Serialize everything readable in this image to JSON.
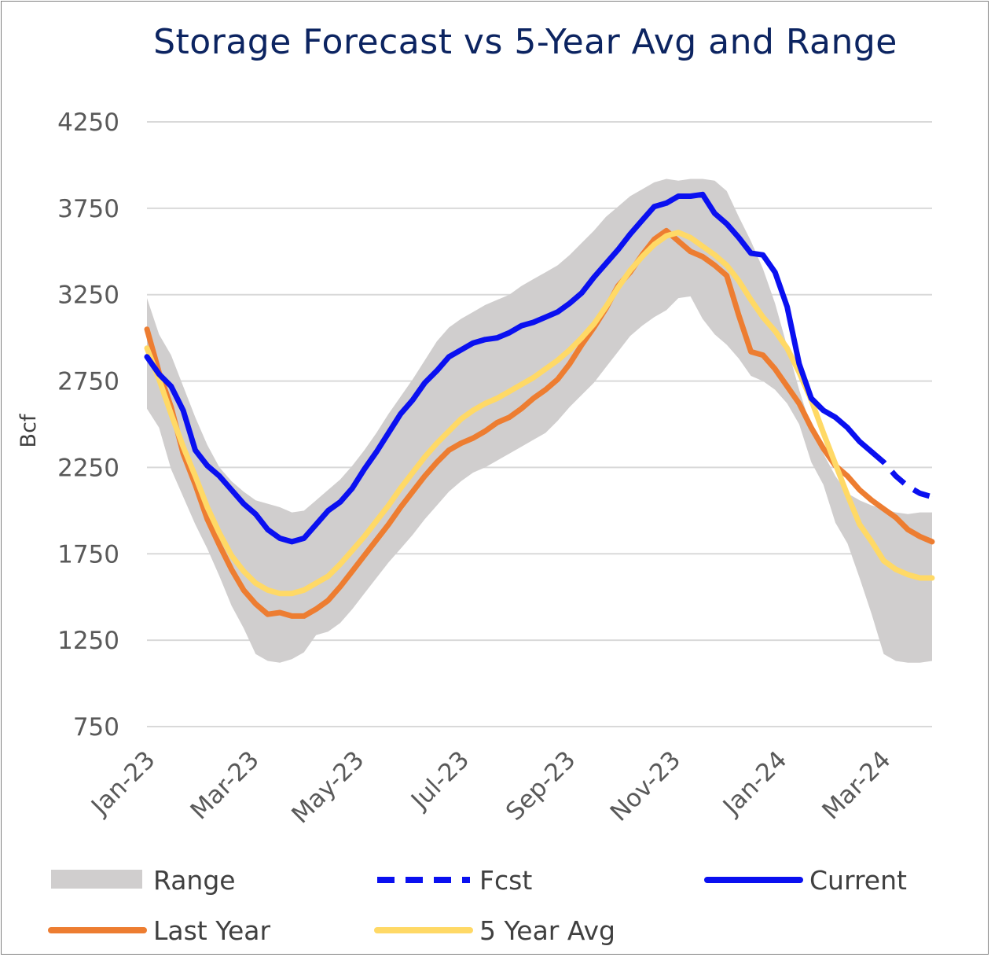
{
  "chart_data": {
    "type": "line",
    "title": "Storage Forecast vs 5-Year Avg and Range",
    "xlabel": "",
    "ylabel": "Bcf",
    "ylim": [
      750,
      4250
    ],
    "yticks": [
      750,
      1250,
      1750,
      2250,
      2750,
      3250,
      3750,
      4250
    ],
    "xlim_weeks": [
      0,
      65
    ],
    "xticks": [
      {
        "label": "Jan-23",
        "week": 0
      },
      {
        "label": "Mar-23",
        "week": 8.6
      },
      {
        "label": "May-23",
        "week": 17.3
      },
      {
        "label": "Jul-23",
        "week": 26
      },
      {
        "label": "Sep-23",
        "week": 34.8
      },
      {
        "label": "Nov-23",
        "week": 43.5
      },
      {
        "label": "Jan-24",
        "week": 52.3
      },
      {
        "label": "Mar-24",
        "week": 60.9
      }
    ],
    "grid": true,
    "legend_position": "bottom",
    "series": [
      {
        "name": "Range",
        "kind": "band",
        "color": "#d0cece",
        "weeks": [
          0,
          1,
          2,
          3,
          4,
          5,
          6,
          7,
          8,
          9,
          10,
          11,
          12,
          13,
          14,
          15,
          16,
          17,
          18,
          19,
          20,
          21,
          22,
          23,
          24,
          25,
          26,
          27,
          28,
          29,
          30,
          31,
          32,
          33,
          34,
          35,
          36,
          37,
          38,
          39,
          40,
          41,
          42,
          43,
          44,
          45,
          46,
          47,
          48,
          49,
          50,
          51,
          52,
          53,
          54,
          55,
          56,
          57,
          58,
          59,
          60,
          61,
          62,
          63,
          64,
          65
        ],
        "upper": [
          3230,
          3020,
          2900,
          2720,
          2540,
          2380,
          2250,
          2170,
          2110,
          2060,
          2040,
          2020,
          1990,
          2000,
          2060,
          2120,
          2180,
          2260,
          2350,
          2450,
          2560,
          2660,
          2760,
          2870,
          2980,
          3060,
          3110,
          3150,
          3190,
          3220,
          3250,
          3300,
          3340,
          3380,
          3420,
          3480,
          3550,
          3620,
          3700,
          3760,
          3820,
          3860,
          3900,
          3920,
          3910,
          3920,
          3920,
          3910,
          3850,
          3700,
          3560,
          3400,
          3200,
          2950,
          2700,
          2480,
          2330,
          2200,
          2100,
          2060,
          2030,
          2010,
          1990,
          1980,
          1990,
          1990
        ],
        "lower": [
          2590,
          2480,
          2240,
          2080,
          1920,
          1780,
          1620,
          1450,
          1320,
          1170,
          1130,
          1120,
          1140,
          1180,
          1280,
          1300,
          1350,
          1430,
          1520,
          1610,
          1700,
          1780,
          1860,
          1950,
          2030,
          2110,
          2170,
          2220,
          2250,
          2290,
          2330,
          2370,
          2410,
          2450,
          2520,
          2600,
          2670,
          2740,
          2830,
          2920,
          3010,
          3070,
          3120,
          3160,
          3230,
          3240,
          3110,
          3020,
          2960,
          2880,
          2780,
          2750,
          2700,
          2620,
          2500,
          2280,
          2150,
          1930,
          1810,
          1610,
          1400,
          1170,
          1130,
          1120,
          1120,
          1130
        ]
      },
      {
        "name": "Last Year",
        "kind": "line",
        "color": "#ed7d31",
        "weeks": [
          0,
          1,
          2,
          3,
          4,
          5,
          6,
          7,
          8,
          9,
          10,
          11,
          12,
          13,
          14,
          15,
          16,
          17,
          18,
          19,
          20,
          21,
          22,
          23,
          24,
          25,
          26,
          27,
          28,
          29,
          30,
          31,
          32,
          33,
          34,
          35,
          36,
          37,
          38,
          39,
          40,
          41,
          42,
          43,
          44,
          45,
          46,
          47,
          48,
          49,
          50,
          51,
          52,
          53,
          54,
          55,
          56,
          57,
          58,
          59,
          60,
          61,
          62,
          63,
          64,
          65
        ],
        "values": [
          3050,
          2800,
          2600,
          2330,
          2150,
          1950,
          1800,
          1660,
          1540,
          1460,
          1400,
          1410,
          1390,
          1390,
          1430,
          1480,
          1560,
          1650,
          1740,
          1830,
          1920,
          2020,
          2110,
          2200,
          2280,
          2350,
          2390,
          2420,
          2460,
          2510,
          2540,
          2590,
          2650,
          2700,
          2760,
          2850,
          2960,
          3060,
          3170,
          3300,
          3380,
          3480,
          3570,
          3620,
          3560,
          3500,
          3470,
          3420,
          3360,
          3130,
          2920,
          2900,
          2820,
          2720,
          2620,
          2480,
          2360,
          2260,
          2200,
          2120,
          2060,
          2010,
          1960,
          1890,
          1850,
          1820
        ]
      },
      {
        "name": "5 Year Avg",
        "kind": "line",
        "color": "#ffd966",
        "weeks": [
          0,
          1,
          2,
          3,
          4,
          5,
          6,
          7,
          8,
          9,
          10,
          11,
          12,
          13,
          14,
          15,
          16,
          17,
          18,
          19,
          20,
          21,
          22,
          23,
          24,
          25,
          26,
          27,
          28,
          29,
          30,
          31,
          32,
          33,
          34,
          35,
          36,
          37,
          38,
          39,
          40,
          41,
          42,
          43,
          44,
          45,
          46,
          47,
          48,
          49,
          50,
          51,
          52,
          53,
          54,
          55,
          56,
          57,
          58,
          59,
          60,
          61,
          62,
          63,
          64,
          65
        ],
        "values": [
          2940,
          2760,
          2560,
          2370,
          2200,
          2020,
          1870,
          1740,
          1650,
          1580,
          1540,
          1520,
          1520,
          1540,
          1580,
          1620,
          1690,
          1770,
          1850,
          1940,
          2030,
          2130,
          2220,
          2310,
          2390,
          2460,
          2530,
          2580,
          2620,
          2650,
          2690,
          2730,
          2770,
          2820,
          2870,
          2930,
          3000,
          3080,
          3180,
          3290,
          3390,
          3470,
          3540,
          3590,
          3610,
          3580,
          3530,
          3480,
          3420,
          3330,
          3220,
          3120,
          3040,
          2940,
          2800,
          2640,
          2450,
          2270,
          2090,
          1920,
          1820,
          1710,
          1660,
          1630,
          1610,
          1610
        ]
      },
      {
        "name": "Current",
        "kind": "line",
        "color": "#0a10f0",
        "weeks": [
          0,
          1,
          2,
          3,
          4,
          5,
          6,
          7,
          8,
          9,
          10,
          11,
          12,
          13,
          14,
          15,
          16,
          17,
          18,
          19,
          20,
          21,
          22,
          23,
          24,
          25,
          26,
          27,
          28,
          29,
          30,
          31,
          32,
          33,
          34,
          35,
          36,
          37,
          38,
          39,
          40,
          41,
          42,
          43,
          44,
          45,
          46,
          47,
          48,
          49,
          50,
          51,
          52,
          53,
          54,
          55,
          56,
          57,
          58,
          59,
          60
        ],
        "values": [
          2890,
          2790,
          2720,
          2580,
          2350,
          2260,
          2200,
          2120,
          2040,
          1980,
          1890,
          1840,
          1820,
          1840,
          1920,
          2000,
          2050,
          2130,
          2240,
          2340,
          2450,
          2560,
          2640,
          2740,
          2810,
          2890,
          2930,
          2970,
          2990,
          3000,
          3030,
          3070,
          3090,
          3120,
          3150,
          3200,
          3260,
          3350,
          3430,
          3510,
          3600,
          3680,
          3760,
          3780,
          3820,
          3820,
          3830,
          3720,
          3660,
          3580,
          3490,
          3480,
          3380,
          3180,
          2850,
          2650,
          2580,
          2540,
          2480,
          2400,
          2340
        ]
      },
      {
        "name": "Fcst",
        "kind": "dashed",
        "color": "#0a10f0",
        "weeks": [
          60,
          61,
          62,
          63,
          64,
          65
        ],
        "values": [
          2340,
          2280,
          2200,
          2140,
          2100,
          2080
        ]
      }
    ],
    "legend": [
      {
        "label": "Range",
        "kind": "band",
        "color": "#d0cece"
      },
      {
        "label": "Fcst",
        "kind": "dashed",
        "color": "#0a10f0"
      },
      {
        "label": "Current",
        "kind": "line",
        "color": "#0a10f0"
      },
      {
        "label": "Last Year",
        "kind": "line",
        "color": "#ed7d31"
      },
      {
        "label": "5 Year Avg",
        "kind": "line",
        "color": "#ffd966"
      }
    ]
  }
}
